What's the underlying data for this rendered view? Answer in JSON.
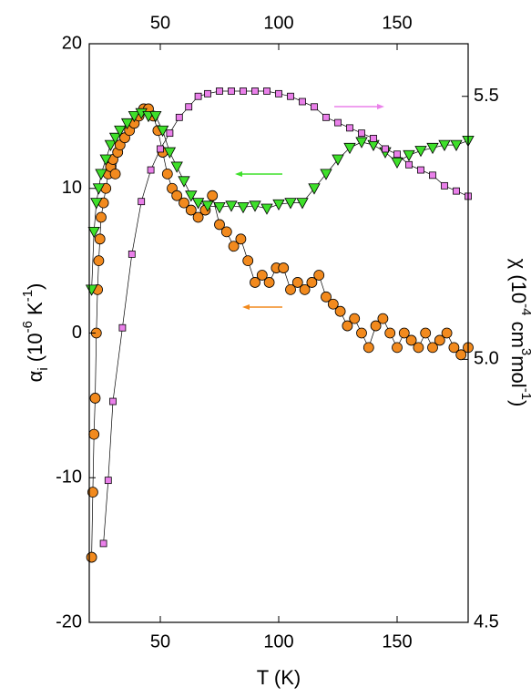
{
  "chart_data": {
    "type": "scatter",
    "xlabel": "T (K)",
    "ylabel": [
      "α",
      "i",
      " (10",
      "-6",
      " K",
      "-1",
      ")"
    ],
    "y2label": [
      "χ (10",
      "-4",
      " cm",
      "3",
      "mol",
      "-1",
      ")"
    ],
    "xlim": [
      20,
      180
    ],
    "xticks": [
      50,
      100,
      150
    ],
    "ylim": [
      -20,
      20
    ],
    "yticks": [
      -20,
      -10,
      0,
      10,
      20
    ],
    "y2lim": [
      4.5,
      5.6
    ],
    "y2ticks": [
      4.5,
      {
        "value": 5,
        "label": "5.0"
      },
      5.5
    ],
    "series": [
      {
        "marker": "circle",
        "color": "#f28a1e",
        "x": [
          21,
          21.5,
          22,
          22.5,
          23,
          23.5,
          24,
          24.5,
          25,
          26,
          27,
          28,
          29,
          30,
          31,
          32,
          33,
          35,
          37,
          39,
          41,
          43,
          45,
          47,
          49,
          51,
          53,
          55,
          57,
          60,
          63,
          66,
          69,
          72,
          75,
          78,
          81,
          84,
          87,
          90,
          93,
          96,
          99,
          102,
          105,
          108,
          111,
          114,
          117,
          120,
          123,
          126,
          129,
          132,
          135,
          138,
          141,
          144,
          147,
          150,
          153,
          156,
          159,
          162,
          165,
          168,
          171,
          174,
          177,
          180
        ],
        "values": [
          -15.5,
          -11,
          -7,
          -4.5,
          0,
          3,
          5,
          6.5,
          8,
          9,
          10,
          11,
          11.5,
          12,
          11,
          12.5,
          13,
          13.5,
          14,
          14.5,
          15,
          15.5,
          15.5,
          15,
          14,
          12.5,
          11,
          10,
          9.5,
          9,
          8.5,
          8,
          8.5,
          9.5,
          7.5,
          7,
          6,
          6.5,
          5,
          3.5,
          4,
          3.5,
          4.5,
          4.5,
          3,
          3.5,
          3,
          3.5,
          4,
          2.5,
          2,
          1.5,
          0.5,
          1,
          0,
          -1,
          0.5,
          1,
          0,
          -1,
          0,
          -0.5,
          -1,
          0,
          -1,
          -0.5,
          0,
          -1,
          -1.5,
          -1
        ]
      },
      {
        "marker": "triangle",
        "color": "#3ee02a",
        "x": [
          21,
          22,
          23,
          24,
          25,
          27,
          29,
          31,
          33,
          36,
          39,
          42,
          45,
          48,
          51,
          54,
          57,
          60,
          63,
          66,
          70,
          75,
          80,
          85,
          90,
          95,
          100,
          105,
          110,
          115,
          120,
          125,
          130,
          135,
          140,
          145,
          150,
          155,
          160,
          165,
          170,
          175,
          180
        ],
        "values": [
          3,
          7,
          9,
          10,
          11,
          12,
          13,
          13.5,
          14,
          14.5,
          15,
          15.2,
          15,
          15,
          14,
          12.5,
          11.5,
          10.5,
          9.5,
          9,
          8.8,
          8.7,
          8.8,
          8.7,
          8.8,
          8.6,
          8.9,
          9,
          9,
          10,
          11,
          12,
          12.8,
          13.2,
          13,
          12.5,
          11.8,
          12.3,
          12.6,
          12.8,
          13,
          13,
          13.3
        ]
      },
      {
        "marker": "square",
        "color": "#ea80ea",
        "axis": "y2",
        "x": [
          26,
          28,
          30,
          34,
          38,
          42,
          46,
          50,
          54,
          58,
          62,
          66,
          70,
          75,
          80,
          85,
          90,
          95,
          100,
          105,
          110,
          115,
          120,
          125,
          130,
          135,
          140,
          145,
          150,
          155,
          160,
          165,
          170,
          175,
          180
        ],
        "values": [
          4.65,
          4.77,
          4.92,
          5.06,
          5.2,
          5.3,
          5.36,
          5.4,
          5.43,
          5.46,
          5.48,
          5.5,
          5.505,
          5.51,
          5.51,
          5.51,
          5.51,
          5.51,
          5.505,
          5.5,
          5.49,
          5.48,
          5.46,
          5.45,
          5.44,
          5.43,
          5.42,
          5.4,
          5.39,
          5.37,
          5.36,
          5.35,
          5.33,
          5.32,
          5.31
        ]
      }
    ]
  }
}
